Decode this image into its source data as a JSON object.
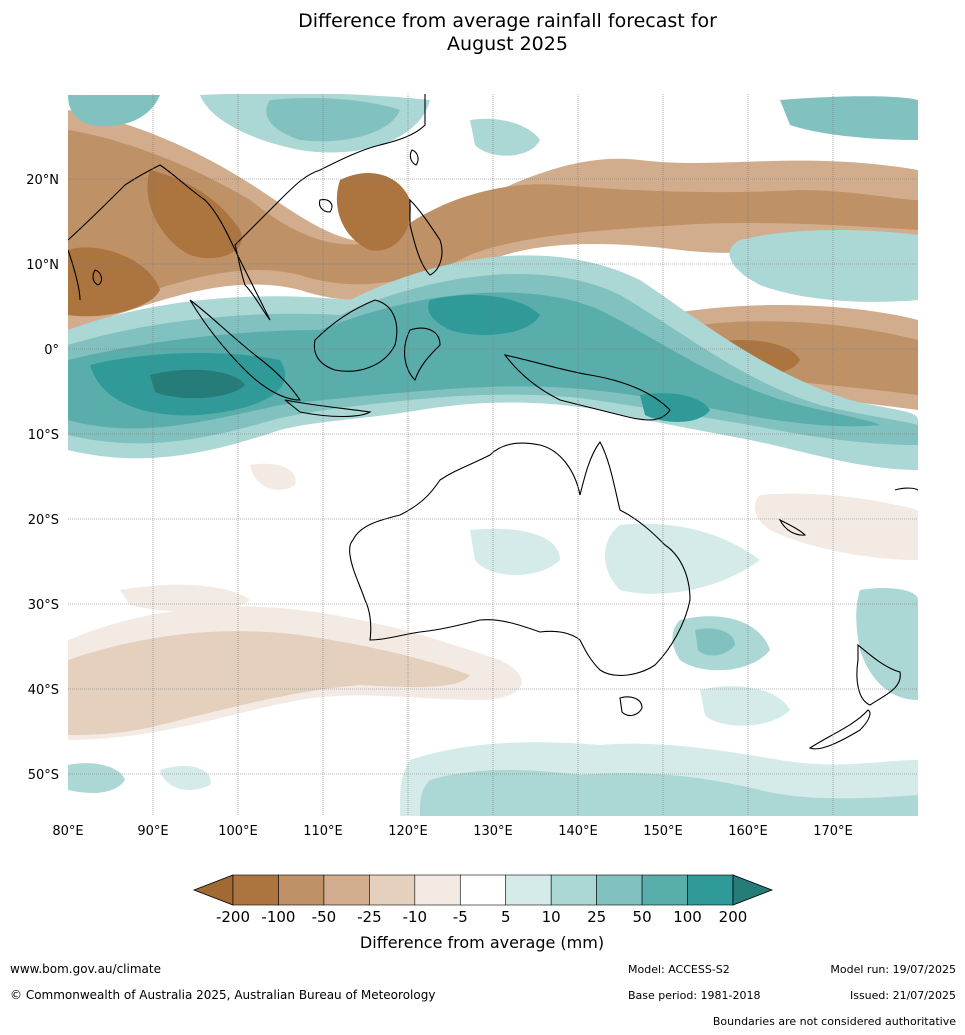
{
  "title": [
    "Difference from average rainfall forecast for",
    "August 2025"
  ],
  "map": {
    "lon_labels": [
      "80°E",
      "90°E",
      "100°E",
      "110°E",
      "120°E",
      "130°E",
      "140°E",
      "150°E",
      "160°E",
      "170°E"
    ],
    "lat_labels": [
      "20°N",
      "10°N",
      "0°",
      "10°S",
      "20°S",
      "30°S",
      "40°S",
      "50°S"
    ]
  },
  "colorbar": {
    "tick_labels": [
      "-200",
      "-100",
      "-50",
      "-25",
      "-10",
      "-5",
      "5",
      "10",
      "25",
      "50",
      "100",
      "200"
    ],
    "colors": [
      "#a16a33",
      "#ac7540",
      "#bf9166",
      "#d1ad8d",
      "#e4d0bd",
      "#f3ebe3",
      "#ffffff",
      "#d5ebe9",
      "#abd7d5",
      "#81c1bf",
      "#59aeab",
      "#2f9a97",
      "#257c79"
    ],
    "label": "Difference from average (mm)"
  },
  "footer": {
    "website": "www.bom.gov.au/climate",
    "copyright": "© Commonwealth of Australia 2025, Australian Bureau of Meteorology",
    "model": "Model: ACCESS-S2",
    "base_period": "Base period: 1981-2018",
    "model_run": "Model run: 19/07/2025",
    "issued": "Issued: 21/07/2025",
    "disclaimer": "Boundaries are not considered authoritative"
  }
}
